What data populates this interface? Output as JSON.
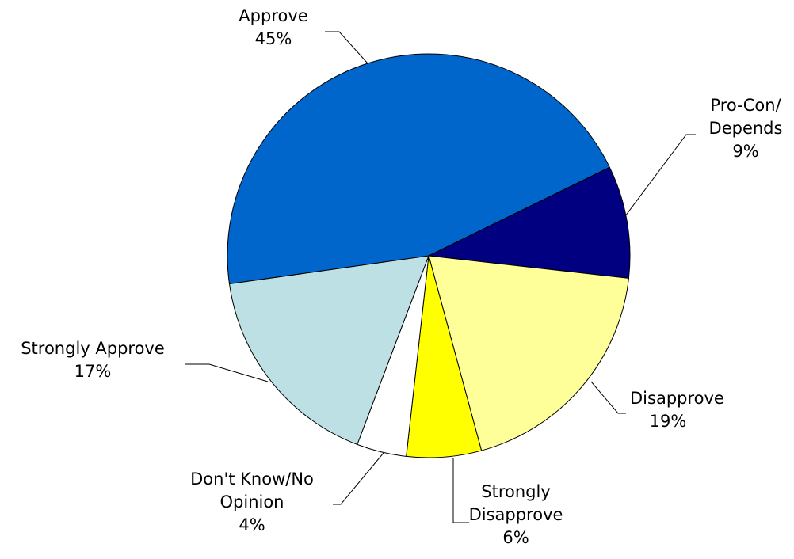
{
  "chart_data": {
    "type": "pie",
    "start_category": "Pro-Con/ Depends",
    "slices": [
      {
        "lines": [
          "Pro-Con/",
          "Depends"
        ],
        "value": 9,
        "pct_label": "9%",
        "color": "#000080"
      },
      {
        "lines": [
          "Disapprove"
        ],
        "value": 19,
        "pct_label": "19%",
        "color": "#FFFF99"
      },
      {
        "lines": [
          "Strongly",
          "Disapprove"
        ],
        "value": 6,
        "pct_label": "6%",
        "color": "#FFFF00"
      },
      {
        "lines": [
          "Don't Know/No",
          "Opinion"
        ],
        "value": 4,
        "pct_label": "4%",
        "color": "#FFFFFF"
      },
      {
        "lines": [
          "Strongly Approve"
        ],
        "value": 17,
        "pct_label": "17%",
        "color": "#BCE0E4"
      },
      {
        "lines": [
          "Approve"
        ],
        "value": 45,
        "pct_label": "45%",
        "color": "#0066CC"
      }
    ],
    "legend": "none"
  }
}
